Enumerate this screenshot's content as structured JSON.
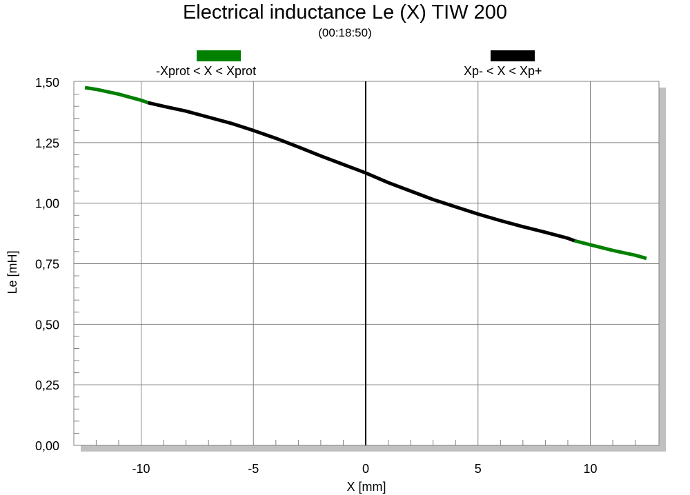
{
  "chart_data": {
    "type": "line",
    "title": "Electrical inductance Le (X) TIW 200",
    "subtitle": "(00:18:50)",
    "xlabel": "X [mm]",
    "ylabel": "Le [mH]",
    "xlim": [
      -13,
      13
    ],
    "ylim": [
      0,
      1.5
    ],
    "xticks": [
      "-10",
      "-5",
      "0",
      "5",
      "10"
    ],
    "xtick_values": [
      -10,
      -5,
      0,
      5,
      10
    ],
    "yticks": [
      "0,00",
      "0,25",
      "0,50",
      "0,75",
      "1,00",
      "1,25",
      "1,50"
    ],
    "ytick_values": [
      0,
      0.25,
      0.5,
      0.75,
      1.0,
      1.25,
      1.5
    ],
    "grid": true,
    "legend_position": "top",
    "series": [
      {
        "name": "-Xprot < X < Xprot",
        "color": "#008000",
        "segments": [
          {
            "x": [
              -12.5,
              -12.0,
              -11.0,
              -10.0,
              -9.7
            ],
            "y": [
              1.477,
              1.47,
              1.45,
              1.425,
              1.415
            ]
          },
          {
            "x": [
              9.3,
              10.0,
              11.0,
              12.0,
              12.5
            ],
            "y": [
              0.845,
              0.828,
              0.805,
              0.785,
              0.772
            ]
          }
        ]
      },
      {
        "name": "Xp- < X < Xp+",
        "color": "#000000",
        "segments": [
          {
            "x": [
              -9.7,
              -9.0,
              -8.0,
              -7.0,
              -6.0,
              -5.0,
              -4.0,
              -3.0,
              -2.0,
              -1.0,
              0.0,
              1.0,
              2.0,
              3.0,
              4.0,
              5.0,
              6.0,
              7.0,
              8.0,
              9.0,
              9.3
            ],
            "y": [
              1.415,
              1.4,
              1.38,
              1.355,
              1.33,
              1.3,
              1.268,
              1.232,
              1.195,
              1.16,
              1.125,
              1.085,
              1.05,
              1.015,
              0.985,
              0.955,
              0.928,
              0.903,
              0.88,
              0.855,
              0.845
            ]
          }
        ]
      }
    ],
    "zero_line": {
      "x": 0,
      "color": "#000000"
    }
  }
}
